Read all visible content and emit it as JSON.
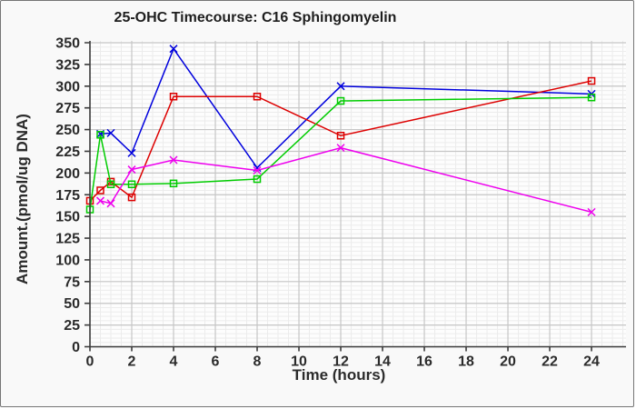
{
  "window": {
    "background": "#f9f9f9",
    "border_color": "#767676",
    "plot_background": "#fdfdfd"
  },
  "chart_data": {
    "type": "line",
    "title": "25-OHC Timecourse: C16 Sphingomyelin",
    "xlabel": "Time (hours)",
    "ylabel": "Amount.(pmol/ug DNA)",
    "xlim": [
      0,
      25.65
    ],
    "ylim": [
      0,
      350
    ],
    "x_ticks": [
      0,
      2,
      4,
      6,
      8,
      10,
      12,
      14,
      16,
      18,
      20,
      22,
      24
    ],
    "y_ticks": [
      0,
      25,
      50,
      75,
      100,
      125,
      150,
      175,
      200,
      225,
      250,
      275,
      300,
      325,
      350
    ],
    "x_minor_step": 0.5,
    "y_minor_step": 5,
    "grid": {
      "on": true,
      "major_color": "#c6c6c6",
      "minor_color": "#ececec"
    },
    "axis_color": "#3a3a3a",
    "legend": "none",
    "series": [
      {
        "name": "blue-series",
        "color": "#0000dd",
        "marker": "x",
        "points": [
          [
            0.5,
            245
          ],
          [
            1,
            246
          ],
          [
            2,
            223
          ],
          [
            4,
            343
          ],
          [
            8,
            206
          ],
          [
            12,
            300
          ],
          [
            24,
            291
          ]
        ]
      },
      {
        "name": "red-series",
        "color": "#dd0000",
        "marker": "square",
        "points": [
          [
            0,
            168
          ],
          [
            0.5,
            180
          ],
          [
            1,
            190
          ],
          [
            2,
            172
          ],
          [
            4,
            288
          ],
          [
            8,
            288
          ],
          [
            12,
            243
          ],
          [
            24,
            306
          ]
        ]
      },
      {
        "name": "green-series",
        "color": "#00cc00",
        "marker": "square",
        "points": [
          [
            0,
            158
          ],
          [
            0.5,
            244
          ],
          [
            1,
            187
          ],
          [
            2,
            187
          ],
          [
            4,
            188
          ],
          [
            8,
            193
          ],
          [
            12,
            283
          ],
          [
            24,
            287
          ]
        ]
      },
      {
        "name": "magenta-series",
        "color": "#ee00ee",
        "marker": "x",
        "points": [
          [
            0.5,
            168
          ],
          [
            1,
            165
          ],
          [
            2,
            204
          ],
          [
            4,
            215
          ],
          [
            8,
            203
          ],
          [
            12,
            229
          ],
          [
            24,
            155
          ]
        ]
      }
    ]
  }
}
